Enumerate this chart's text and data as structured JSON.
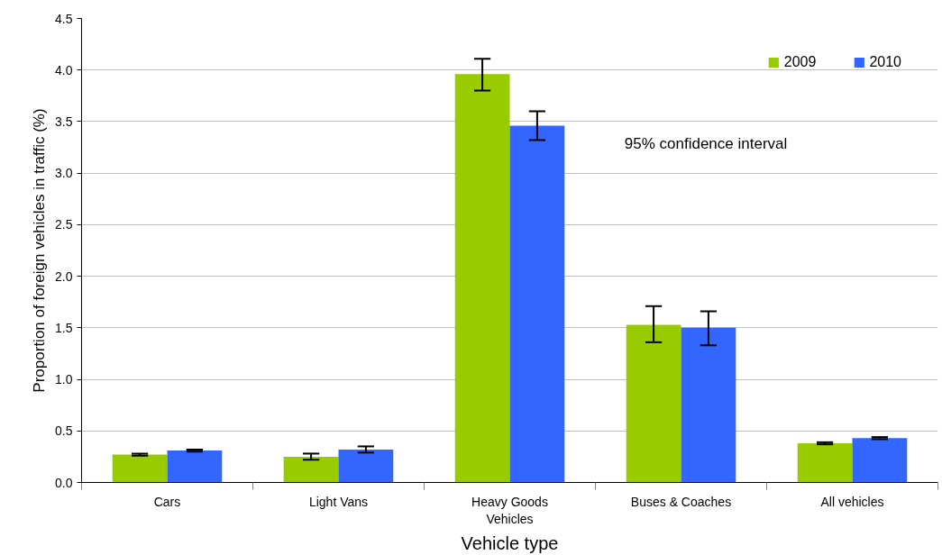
{
  "chart_data": {
    "type": "bar",
    "xlabel": "Vehicle type",
    "ylabel": "Proportion of foreign vehicles in traffic (%)",
    "categories": [
      "Cars",
      "Light Vans",
      "Heavy Goods Vehicles",
      "Buses & Coaches",
      "All vehicles"
    ],
    "series": [
      {
        "name": "2009",
        "color": "#99cc00",
        "values": [
          0.27,
          0.25,
          3.96,
          1.53,
          0.38
        ],
        "errors": [
          0.01,
          0.03,
          [
            3.8,
            4.11
          ],
          [
            1.36,
            1.71
          ],
          0.01
        ]
      },
      {
        "name": "2010",
        "color": "#3366ff",
        "values": [
          0.31,
          0.32,
          3.46,
          1.5,
          0.43
        ],
        "errors": [
          0.01,
          0.03,
          [
            3.32,
            3.6
          ],
          [
            1.33,
            1.66
          ],
          0.01
        ]
      }
    ],
    "ylim": [
      0,
      4.5
    ],
    "yticks": [
      {
        "value": 0,
        "label": "0.0"
      },
      {
        "value": 0.5,
        "label": "0.5"
      },
      {
        "value": 1,
        "label": "1.0"
      },
      {
        "value": 1.5,
        "label": "1.5"
      },
      {
        "value": 2,
        "label": "2.0"
      },
      {
        "value": 2.5,
        "label": "2.5"
      },
      {
        "value": 3,
        "label": "3.0"
      },
      {
        "value": 3.5,
        "label": "3.5"
      },
      {
        "value": 4,
        "label": "4.0"
      },
      {
        "value": 4.5,
        "label": "4.5"
      }
    ],
    "grid": "y",
    "legend": "top right",
    "annotations": [
      "95% confidence interval"
    ]
  }
}
